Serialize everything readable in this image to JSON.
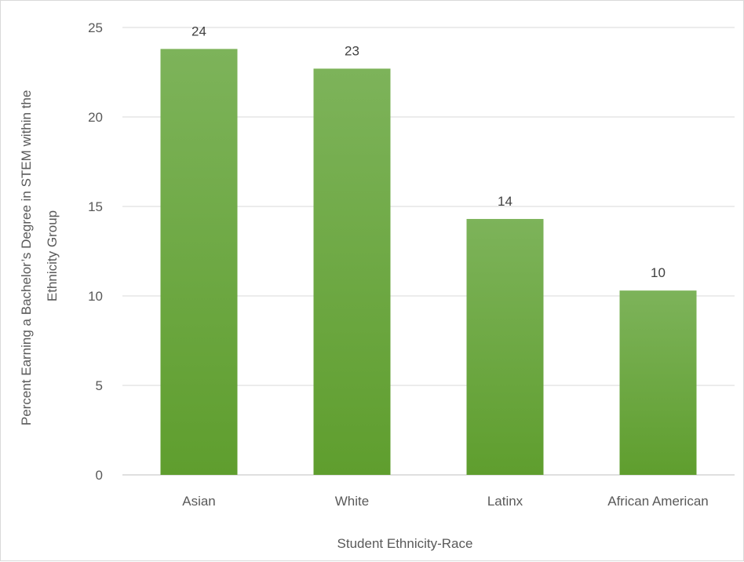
{
  "chart_data": {
    "type": "bar",
    "categories": [
      "Asian",
      "White",
      "Latinx",
      "African American"
    ],
    "values": [
      23.8,
      22.7,
      14.3,
      10.3
    ],
    "data_labels": [
      "24",
      "23",
      "14",
      "10"
    ],
    "title": "",
    "xlabel": "Student Ethnicity-Race",
    "ylabel_lines": [
      "Percent Earning a Bachelor’s Degree in STEM within the",
      "Ethnicity Group"
    ],
    "ylim": [
      0,
      25
    ],
    "yticks": [
      0,
      5,
      10,
      15,
      20,
      25
    ],
    "grid": true,
    "legend": "none",
    "bar_color_top": "#7db35a",
    "bar_color_bottom": "#5f9e2e"
  }
}
